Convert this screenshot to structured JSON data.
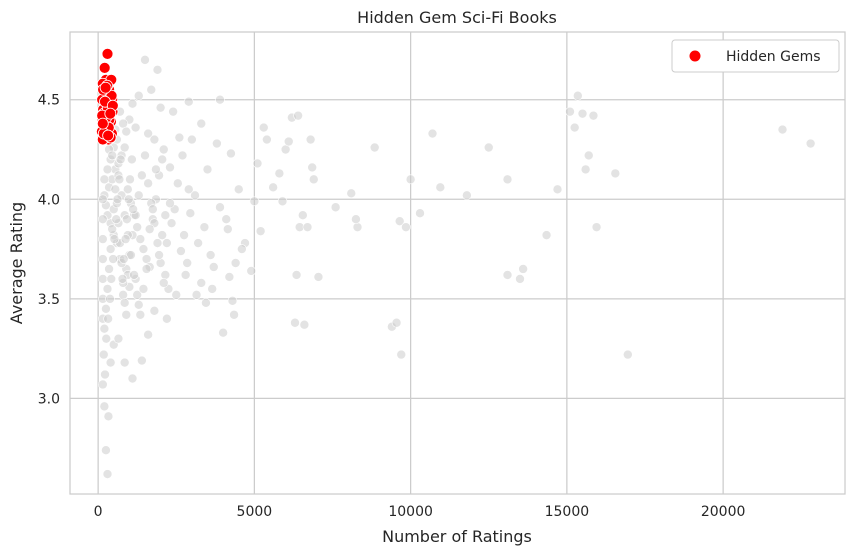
{
  "chart_data": {
    "type": "scatter",
    "title": "Hidden Gem Sci-Fi Books",
    "xlabel": "Number of Ratings",
    "ylabel": "Average Rating",
    "xlim": [
      -900,
      23900
    ],
    "ylim": [
      2.52,
      4.84
    ],
    "xticks": [
      0,
      5000,
      10000,
      15000,
      20000
    ],
    "xtick_labels": [
      "0",
      "5000",
      "10000",
      "15000",
      "20000"
    ],
    "yticks": [
      3.0,
      3.5,
      4.0,
      4.5
    ],
    "ytick_labels": [
      "3.0",
      "3.5",
      "4.0",
      "4.5"
    ],
    "grid": true,
    "legend_position": "top-right",
    "colors": {
      "background_points": "#cccccc",
      "hidden_gems": "#ff0000",
      "grid": "#cccccc",
      "axes": "#cccccc"
    },
    "series": [
      {
        "role": "background",
        "points": [
          [
            150,
            3.07
          ],
          [
            200,
            2.96
          ],
          [
            250,
            2.74
          ],
          [
            300,
            2.62
          ],
          [
            330,
            2.91
          ],
          [
            400,
            3.18
          ],
          [
            500,
            3.27
          ],
          [
            650,
            3.3
          ],
          [
            850,
            3.18
          ],
          [
            1100,
            3.1
          ],
          [
            1400,
            3.19
          ],
          [
            1600,
            3.32
          ],
          [
            2200,
            3.4
          ],
          [
            1800,
            3.44
          ],
          [
            1300,
            3.47
          ],
          [
            800,
            3.52
          ],
          [
            1000,
            3.56
          ],
          [
            1200,
            3.6
          ],
          [
            900,
            3.65
          ],
          [
            700,
            3.7
          ],
          [
            600,
            3.78
          ],
          [
            500,
            3.82
          ],
          [
            400,
            3.88
          ],
          [
            300,
            3.92
          ],
          [
            250,
            3.97
          ],
          [
            200,
            4.02
          ],
          [
            350,
            4.06
          ],
          [
            450,
            4.1
          ],
          [
            550,
            4.15
          ],
          [
            650,
            4.18
          ],
          [
            750,
            4.22
          ],
          [
            850,
            4.26
          ],
          [
            950,
            4.05
          ],
          [
            1050,
            3.98
          ],
          [
            1150,
            3.92
          ],
          [
            1250,
            3.86
          ],
          [
            1350,
            3.8
          ],
          [
            1450,
            3.75
          ],
          [
            1550,
            3.7
          ],
          [
            1650,
            3.66
          ],
          [
            1750,
            3.9
          ],
          [
            1850,
            4.0
          ],
          [
            1950,
            4.12
          ],
          [
            2050,
            4.2
          ],
          [
            2150,
            3.62
          ],
          [
            2250,
            3.55
          ],
          [
            2350,
            3.88
          ],
          [
            2450,
            3.95
          ],
          [
            2550,
            4.08
          ],
          [
            2650,
            3.74
          ],
          [
            2750,
            3.82
          ],
          [
            2850,
            3.68
          ],
          [
            2950,
            3.93
          ],
          [
            3100,
            4.02
          ],
          [
            3200,
            3.78
          ],
          [
            3300,
            3.58
          ],
          [
            3400,
            3.86
          ],
          [
            3500,
            4.15
          ],
          [
            3600,
            3.72
          ],
          [
            3700,
            3.66
          ],
          [
            3800,
            4.28
          ],
          [
            3900,
            3.96
          ],
          [
            4000,
            3.33
          ],
          [
            4100,
            3.9
          ],
          [
            4200,
            3.61
          ],
          [
            4300,
            3.49
          ],
          [
            4350,
            3.42
          ],
          [
            4400,
            3.68
          ],
          [
            4500,
            4.05
          ],
          [
            4700,
            3.78
          ],
          [
            4900,
            3.64
          ],
          [
            5000,
            3.99
          ],
          [
            5100,
            4.18
          ],
          [
            5200,
            3.84
          ],
          [
            5300,
            4.36
          ],
          [
            5400,
            4.3
          ],
          [
            5600,
            4.06
          ],
          [
            5800,
            4.13
          ],
          [
            5900,
            3.99
          ],
          [
            6000,
            4.25
          ],
          [
            6100,
            4.29
          ],
          [
            6200,
            4.41
          ],
          [
            6300,
            3.38
          ],
          [
            6350,
            3.62
          ],
          [
            6400,
            4.42
          ],
          [
            6450,
            3.86
          ],
          [
            6550,
            3.92
          ],
          [
            6600,
            3.37
          ],
          [
            6700,
            3.86
          ],
          [
            6800,
            4.3
          ],
          [
            6850,
            4.16
          ],
          [
            6900,
            4.1
          ],
          [
            7050,
            3.61
          ],
          [
            7600,
            3.96
          ],
          [
            8100,
            4.03
          ],
          [
            8300,
            3.86
          ],
          [
            8250,
            3.9
          ],
          [
            8850,
            4.26
          ],
          [
            9400,
            3.36
          ],
          [
            9550,
            3.38
          ],
          [
            9650,
            3.89
          ],
          [
            9700,
            3.22
          ],
          [
            9850,
            3.86
          ],
          [
            10000,
            4.1
          ],
          [
            10300,
            3.93
          ],
          [
            10700,
            4.33
          ],
          [
            10950,
            4.06
          ],
          [
            11800,
            4.02
          ],
          [
            12500,
            4.26
          ],
          [
            13100,
            3.62
          ],
          [
            13100,
            4.1
          ],
          [
            13500,
            3.6
          ],
          [
            13600,
            3.65
          ],
          [
            14350,
            3.82
          ],
          [
            14700,
            4.05
          ],
          [
            15100,
            4.44
          ],
          [
            15250,
            4.36
          ],
          [
            15350,
            4.52
          ],
          [
            15500,
            4.43
          ],
          [
            15600,
            4.15
          ],
          [
            15700,
            4.22
          ],
          [
            15850,
            4.42
          ],
          [
            15950,
            3.86
          ],
          [
            16550,
            4.13
          ],
          [
            16950,
            3.22
          ],
          [
            21900,
            4.35
          ],
          [
            22800,
            4.28
          ],
          [
            1500,
            4.7
          ],
          [
            1900,
            4.65
          ],
          [
            1700,
            4.55
          ],
          [
            1300,
            4.52
          ],
          [
            1100,
            4.48
          ],
          [
            2000,
            4.46
          ],
          [
            2400,
            4.44
          ],
          [
            2900,
            4.49
          ],
          [
            3000,
            4.3
          ],
          [
            3900,
            4.5
          ],
          [
            1000,
            4.4
          ],
          [
            1200,
            4.36
          ],
          [
            1600,
            4.33
          ],
          [
            1800,
            4.3
          ],
          [
            2100,
            4.25
          ],
          [
            2600,
            4.31
          ],
          [
            2700,
            4.22
          ],
          [
            3300,
            4.38
          ],
          [
            700,
            4.44
          ],
          [
            800,
            4.38
          ],
          [
            900,
            4.34
          ],
          [
            600,
            4.3
          ],
          [
            500,
            4.26
          ],
          [
            400,
            4.2
          ],
          [
            300,
            4.15
          ],
          [
            200,
            4.1
          ],
          [
            150,
            4.0
          ],
          [
            150,
            3.9
          ],
          [
            150,
            3.8
          ],
          [
            150,
            3.7
          ],
          [
            150,
            3.6
          ],
          [
            150,
            3.5
          ],
          [
            150,
            3.4
          ],
          [
            200,
            3.35
          ],
          [
            250,
            3.45
          ],
          [
            300,
            3.55
          ],
          [
            350,
            3.65
          ],
          [
            400,
            3.75
          ],
          [
            450,
            3.85
          ],
          [
            500,
            3.95
          ],
          [
            550,
            4.05
          ],
          [
            600,
            3.98
          ],
          [
            650,
            3.88
          ],
          [
            700,
            3.78
          ],
          [
            750,
            3.68
          ],
          [
            800,
            3.58
          ],
          [
            850,
            3.48
          ],
          [
            900,
            3.42
          ],
          [
            950,
            3.62
          ],
          [
            1000,
            3.72
          ],
          [
            1100,
            3.82
          ],
          [
            1200,
            3.92
          ],
          [
            1300,
            4.02
          ],
          [
            1400,
            4.12
          ],
          [
            1500,
            4.22
          ],
          [
            1600,
            4.08
          ],
          [
            1700,
            3.98
          ],
          [
            1800,
            3.88
          ],
          [
            1900,
            3.78
          ],
          [
            2000,
            3.68
          ],
          [
            2100,
            3.58
          ],
          [
            2200,
            3.78
          ],
          [
            2300,
            3.98
          ],
          [
            250,
            4.3
          ],
          [
            350,
            4.25
          ],
          [
            450,
            4.22
          ],
          [
            550,
            4.35
          ],
          [
            650,
            4.12
          ],
          [
            750,
            4.02
          ],
          [
            850,
            3.92
          ],
          [
            950,
            3.82
          ],
          [
            1050,
            3.72
          ],
          [
            1150,
            3.62
          ],
          [
            1250,
            3.52
          ],
          [
            1350,
            3.42
          ],
          [
            1450,
            3.55
          ],
          [
            1550,
            3.65
          ],
          [
            1650,
            3.85
          ],
          [
            1750,
            3.95
          ],
          [
            1850,
            4.15
          ],
          [
            1950,
            3.72
          ],
          [
            2050,
            3.82
          ],
          [
            2150,
            3.92
          ],
          [
            180,
            3.22
          ],
          [
            220,
            3.12
          ],
          [
            260,
            3.3
          ],
          [
            320,
            3.4
          ],
          [
            380,
            3.5
          ],
          [
            420,
            3.6
          ],
          [
            480,
            3.7
          ],
          [
            520,
            3.8
          ],
          [
            580,
            3.9
          ],
          [
            620,
            4.0
          ],
          [
            680,
            4.1
          ],
          [
            720,
            4.2
          ],
          [
            780,
            3.6
          ],
          [
            820,
            3.7
          ],
          [
            880,
            3.8
          ],
          [
            920,
            3.9
          ],
          [
            980,
            4.0
          ],
          [
            1020,
            4.1
          ],
          [
            1080,
            4.2
          ],
          [
            1120,
            3.95
          ],
          [
            2500,
            3.52
          ],
          [
            2800,
            3.62
          ],
          [
            3150,
            3.52
          ],
          [
            3450,
            3.48
          ],
          [
            3650,
            3.55
          ],
          [
            4150,
            3.85
          ],
          [
            4250,
            4.23
          ],
          [
            4600,
            3.75
          ],
          [
            2300,
            4.16
          ],
          [
            2900,
            4.05
          ]
        ]
      },
      {
        "name": "Hidden Gems",
        "role": "highlight",
        "points": [
          [
            300,
            4.73
          ],
          [
            210,
            4.66
          ],
          [
            250,
            4.6
          ],
          [
            420,
            4.6
          ],
          [
            150,
            4.58
          ],
          [
            350,
            4.55
          ],
          [
            200,
            4.53
          ],
          [
            280,
            4.52
          ],
          [
            450,
            4.5
          ],
          [
            130,
            4.5
          ],
          [
            320,
            4.48
          ],
          [
            240,
            4.47
          ],
          [
            380,
            4.46
          ],
          [
            160,
            4.45
          ],
          [
            460,
            4.44
          ],
          [
            270,
            4.43
          ],
          [
            190,
            4.42
          ],
          [
            340,
            4.41
          ],
          [
            140,
            4.4
          ],
          [
            410,
            4.39
          ],
          [
            230,
            4.38
          ],
          [
            300,
            4.37
          ],
          [
            170,
            4.36
          ],
          [
            370,
            4.35
          ],
          [
            120,
            4.34
          ],
          [
            440,
            4.33
          ],
          [
            260,
            4.32
          ],
          [
            200,
            4.31
          ],
          [
            330,
            4.3
          ],
          [
            150,
            4.3
          ],
          [
            400,
            4.31
          ],
          [
            280,
            4.34
          ],
          [
            220,
            4.37
          ],
          [
            360,
            4.4
          ],
          [
            180,
            4.43
          ],
          [
            310,
            4.46
          ],
          [
            250,
            4.49
          ],
          [
            430,
            4.52
          ],
          [
            160,
            4.55
          ],
          [
            290,
            4.57
          ],
          [
            220,
            4.49
          ],
          [
            260,
            4.41
          ],
          [
            340,
            4.36
          ],
          [
            130,
            4.42
          ],
          [
            470,
            4.47
          ],
          [
            180,
            4.33
          ],
          [
            390,
            4.43
          ],
          [
            240,
            4.56
          ],
          [
            150,
            4.38
          ],
          [
            320,
            4.32
          ]
        ]
      }
    ]
  }
}
